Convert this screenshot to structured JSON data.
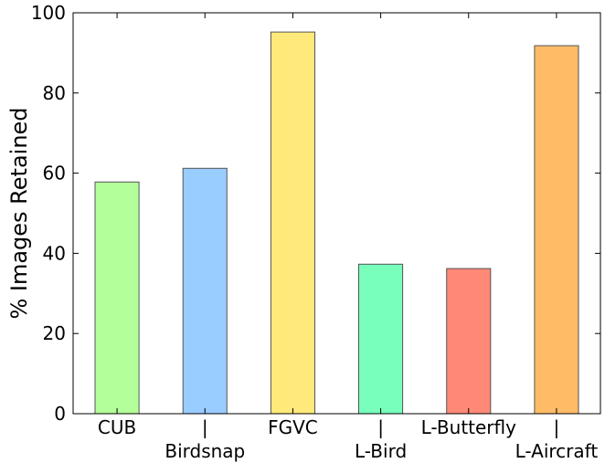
{
  "chart_data": {
    "type": "bar",
    "title": "",
    "xlabel": "",
    "ylabel": "% Images Retained",
    "ylim": [
      0,
      100
    ],
    "yticks": [
      "0",
      "20",
      "40",
      "60",
      "80",
      "100"
    ],
    "grid": false,
    "legend": "none",
    "categories": [
      {
        "name": "CUB",
        "lines": [
          "CUB"
        ]
      },
      {
        "name": "Birdsnap",
        "lines": [
          "|",
          "Birdsnap"
        ]
      },
      {
        "name": "FGVC",
        "lines": [
          "FGVC"
        ]
      },
      {
        "name": "L-Bird",
        "lines": [
          "|",
          "L-Bird"
        ]
      },
      {
        "name": "L-Butterfly",
        "lines": [
          "L-Butterfly"
        ]
      },
      {
        "name": "L-Aircraft",
        "lines": [
          "|",
          "L-Aircraft"
        ]
      }
    ],
    "values": [
      57.8,
      61.2,
      95.2,
      37.3,
      36.2,
      91.8
    ],
    "colors": [
      "#b3ff99",
      "#99ccff",
      "#ffe97a",
      "#77ffbb",
      "#ff8877",
      "#ffbb66"
    ],
    "bar_edge_color": "#555555",
    "axis_color": "#000000"
  }
}
